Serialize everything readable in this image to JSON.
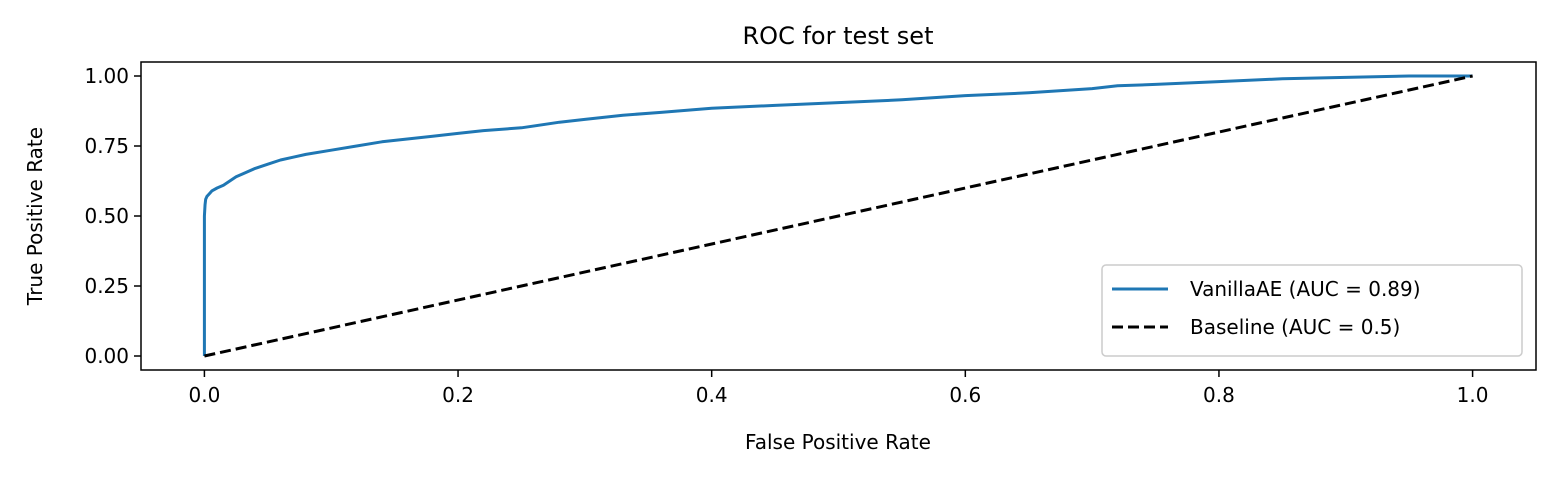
{
  "chart_data": {
    "type": "line",
    "title": "ROC for test set",
    "xlabel": "False Positive Rate",
    "ylabel": "True Positive Rate",
    "xlim": [
      -0.05,
      1.05
    ],
    "ylim": [
      -0.05,
      1.05
    ],
    "xticks": [
      0.0,
      0.2,
      0.4,
      0.6,
      0.8,
      1.0
    ],
    "xtick_labels": [
      "0.0",
      "0.2",
      "0.4",
      "0.6",
      "0.8",
      "1.0"
    ],
    "yticks": [
      0.0,
      0.25,
      0.5,
      0.75,
      1.0
    ],
    "ytick_labels": [
      "0.00",
      "0.25",
      "0.50",
      "0.75",
      "1.00"
    ],
    "grid": false,
    "legend_position": "lower right",
    "series": [
      {
        "name": "VanillaAE (AUC = 0.89)",
        "color": "#1f77b4",
        "style": "solid",
        "x": [
          0.0,
          0.0,
          0.0005,
          0.001,
          0.002,
          0.004,
          0.006,
          0.01,
          0.015,
          0.02,
          0.025,
          0.03,
          0.04,
          0.05,
          0.06,
          0.07,
          0.08,
          0.1,
          0.12,
          0.14,
          0.16,
          0.18,
          0.2,
          0.22,
          0.25,
          0.28,
          0.3,
          0.33,
          0.36,
          0.4,
          0.45,
          0.5,
          0.55,
          0.6,
          0.65,
          0.7,
          0.72,
          0.75,
          0.8,
          0.85,
          0.9,
          0.95,
          1.0
        ],
        "y": [
          0.0,
          0.5,
          0.54,
          0.56,
          0.57,
          0.58,
          0.59,
          0.6,
          0.61,
          0.625,
          0.64,
          0.65,
          0.67,
          0.685,
          0.7,
          0.71,
          0.72,
          0.735,
          0.75,
          0.765,
          0.775,
          0.785,
          0.795,
          0.805,
          0.815,
          0.835,
          0.845,
          0.86,
          0.87,
          0.885,
          0.895,
          0.905,
          0.915,
          0.93,
          0.94,
          0.955,
          0.965,
          0.97,
          0.98,
          0.99,
          0.995,
          1.0,
          1.0
        ]
      },
      {
        "name": "Baseline (AUC = 0.5)",
        "color": "#000000",
        "style": "dashed",
        "x": [
          0.0,
          1.0
        ],
        "y": [
          0.0,
          1.0
        ]
      }
    ]
  }
}
